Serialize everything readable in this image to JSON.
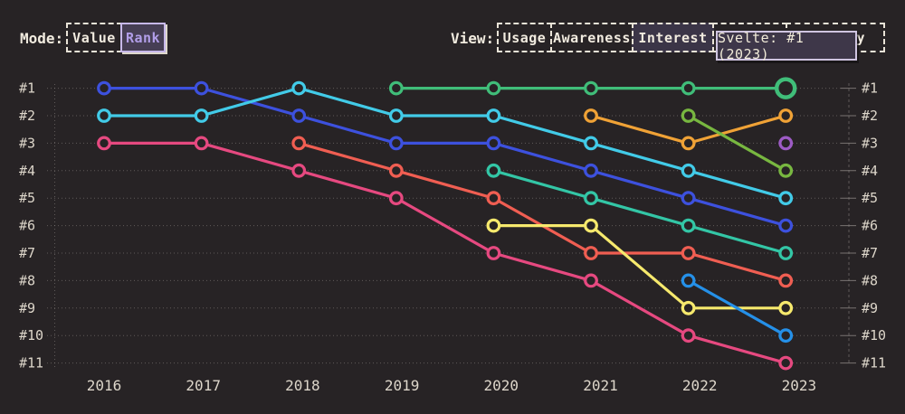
{
  "colors": {
    "background": "#272325",
    "text": "#ece5d8",
    "grid": "#8d8884",
    "selected_mode_bg": "#463e54",
    "selected_mode_text": "#b29ee9",
    "selected_view_bg": "#3b3547",
    "tooltip_bg": "#3e3749",
    "tooltip_border": "#cfc4e0"
  },
  "mode": {
    "label": "Mode:",
    "options": [
      {
        "label": "Value",
        "selected": false
      },
      {
        "label": "Rank",
        "selected": true
      }
    ]
  },
  "view": {
    "label": "View:",
    "options": [
      {
        "label": "Usage",
        "selected": false
      },
      {
        "label": "Awareness",
        "selected": false
      },
      {
        "label": "Interest",
        "selected": true
      },
      {
        "label": "",
        "note": "button fully obscured by tooltip"
      },
      {
        "label": "ty",
        "note": "label partially obscured by tooltip, only trailing letters visible"
      }
    ]
  },
  "tooltip": {
    "text": "Svelte: #1 (2023)"
  },
  "chart_data": {
    "type": "line",
    "subtype": "bump-rank-chart",
    "x": [
      2016,
      2017,
      2018,
      2019,
      2020,
      2021,
      2022,
      2023
    ],
    "y_axis": {
      "labels": [
        "#1",
        "#2",
        "#3",
        "#4",
        "#5",
        "#6",
        "#7",
        "#8",
        "#9",
        "#10",
        "#11"
      ],
      "shown_left": true,
      "shown_right": true,
      "inverted": true
    },
    "grid": "dotted horizontal lines per rank",
    "legend": "none visible; green series identified as Svelte via tooltip",
    "highlight": {
      "series": "svelte",
      "year": 2023,
      "rank": 1,
      "tooltip": "Svelte: #1 (2023)"
    },
    "series": [
      {
        "name": "series-pink",
        "color": "#e64980",
        "ranks": [
          3,
          3,
          4,
          5,
          7,
          8,
          10,
          11
        ]
      },
      {
        "name": "series-salmon",
        "color": "#f05e52",
        "ranks": [
          null,
          null,
          3,
          4,
          5,
          7,
          7,
          8
        ]
      },
      {
        "name": "series-yellow",
        "color": "#f6e96d",
        "ranks": [
          null,
          null,
          null,
          null,
          6,
          6,
          9,
          9
        ]
      },
      {
        "name": "series-skyblue",
        "color": "#2590e8",
        "ranks": [
          null,
          null,
          null,
          null,
          null,
          null,
          8,
          10
        ]
      },
      {
        "name": "series-teal",
        "color": "#33c6a6",
        "ranks": [
          null,
          null,
          null,
          null,
          4,
          5,
          6,
          7
        ]
      },
      {
        "name": "series-blue",
        "color": "#3d51de",
        "ranks": [
          1,
          1,
          2,
          3,
          3,
          4,
          5,
          6
        ]
      },
      {
        "name": "series-cyan",
        "color": "#42cbe8",
        "ranks": [
          2,
          2,
          1,
          2,
          2,
          3,
          4,
          5
        ]
      },
      {
        "name": "series-orange",
        "color": "#f0a236",
        "ranks": [
          null,
          null,
          null,
          null,
          null,
          2,
          3,
          2
        ]
      },
      {
        "name": "series-lightgreen",
        "color": "#78b740",
        "ranks": [
          null,
          null,
          null,
          null,
          null,
          null,
          2,
          4
        ]
      },
      {
        "name": "series-purple",
        "color": "#9d5bc5",
        "ranks": [
          null,
          null,
          null,
          null,
          null,
          null,
          null,
          3
        ]
      },
      {
        "name": "svelte",
        "color": "#40bd79",
        "ranks": [
          null,
          null,
          null,
          1,
          1,
          1,
          1,
          1
        ],
        "highlight_last": true
      }
    ]
  }
}
